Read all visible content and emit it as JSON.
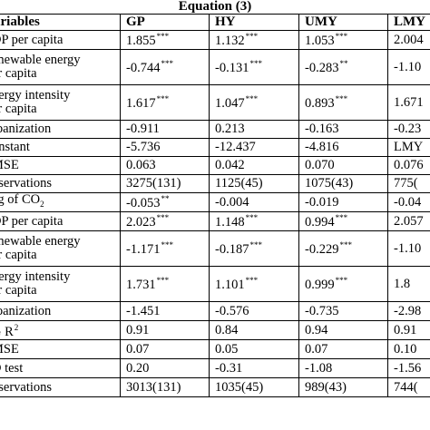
{
  "caption": "Equation (3)",
  "header": [
    "ariables",
    "GP",
    "HY",
    "UMY",
    "LMY"
  ],
  "panel_a": [
    {
      "label": [
        "DP per capita"
      ],
      "cells": [
        [
          "1.855",
          "***"
        ],
        [
          "1.132",
          "***"
        ],
        [
          "1.053",
          "***"
        ],
        [
          "2.004",
          ""
        ]
      ]
    },
    {
      "label": [
        "enewable energy",
        "er capita"
      ],
      "cells": [
        [
          "-0.744",
          "***"
        ],
        [
          "-0.131",
          "***"
        ],
        [
          "-0.283",
          "**"
        ],
        [
          "-1.10",
          ""
        ]
      ]
    },
    {
      "label": [
        "nergy intensity",
        "er capita"
      ],
      "cells": [
        [
          "1.617",
          "***"
        ],
        [
          "1.047",
          "***"
        ],
        [
          "0.893",
          "***"
        ],
        [
          "1.671",
          ""
        ]
      ]
    },
    {
      "label": [
        "rbanization"
      ],
      "cells": [
        [
          "-0.911",
          ""
        ],
        [
          "0.213",
          ""
        ],
        [
          "-0.163",
          ""
        ],
        [
          "-0.23",
          ""
        ]
      ]
    },
    {
      "label": [
        "onstant"
      ],
      "cells": [
        [
          "-5.736",
          ""
        ],
        [
          "-12.437",
          ""
        ],
        [
          "-4.816",
          ""
        ],
        [
          "LMY",
          ""
        ]
      ]
    },
    {
      "label": [
        "MSE"
      ],
      "cells": [
        [
          "0.063",
          ""
        ],
        [
          "0.042",
          ""
        ],
        [
          "0.070",
          ""
        ],
        [
          "0.076",
          ""
        ]
      ]
    },
    {
      "label": [
        "bservations"
      ],
      "cells": [
        [
          "3275(131)",
          ""
        ],
        [
          "1125(45)",
          ""
        ],
        [
          "1075(43)",
          ""
        ],
        [
          "775(",
          ""
        ]
      ]
    }
  ],
  "lag_row": {
    "label_pre": "ag of CO",
    "label_sub": "2",
    "cells": [
      [
        "-0.053",
        "**"
      ],
      [
        "-0.004",
        ""
      ],
      [
        "-0.019",
        ""
      ],
      [
        "-0.04",
        ""
      ]
    ]
  },
  "panel_b": [
    {
      "label": [
        "DP per capita"
      ],
      "cells": [
        [
          "2.023",
          "***"
        ],
        [
          "1.148",
          "***"
        ],
        [
          "0.994",
          "***"
        ],
        [
          "2.057",
          ""
        ]
      ]
    },
    {
      "label": [
        "enewable energy",
        "er capita"
      ],
      "cells": [
        [
          "-1.171",
          "***"
        ],
        [
          "-0.187",
          "***"
        ],
        [
          "-0.229",
          "***"
        ],
        [
          "-1.10",
          ""
        ]
      ]
    },
    {
      "label": [
        "nergy intensity",
        "er capita"
      ],
      "cells": [
        [
          "1.731",
          "***"
        ],
        [
          "1.101",
          "***"
        ],
        [
          "0.999",
          "***"
        ],
        [
          "1.8",
          ""
        ]
      ]
    },
    {
      "label": [
        "rbanization"
      ],
      "cells": [
        [
          "-1.451",
          ""
        ],
        [
          "-0.576",
          ""
        ],
        [
          "-0.735",
          ""
        ],
        [
          "-2.98",
          ""
        ]
      ]
    }
  ],
  "r2_row": {
    "label_pre": "G R",
    "label_sup": "2",
    "cells": [
      [
        "0.91",
        ""
      ],
      [
        "0.84",
        ""
      ],
      [
        "0.94",
        ""
      ],
      [
        "0.91",
        ""
      ]
    ]
  },
  "tail_rows": [
    {
      "label": [
        "MSE"
      ],
      "cells": [
        [
          "0.07",
          ""
        ],
        [
          "0.05",
          ""
        ],
        [
          "0.07",
          ""
        ],
        [
          "0.10",
          ""
        ]
      ]
    },
    {
      "label": [
        "D test"
      ],
      "cells": [
        [
          "0.20",
          ""
        ],
        [
          "-0.31",
          ""
        ],
        [
          "-1.08",
          ""
        ],
        [
          "-1.56",
          ""
        ]
      ]
    },
    {
      "label": [
        "bservations"
      ],
      "cells": [
        [
          "3013(131)",
          ""
        ],
        [
          "1035(45)",
          ""
        ],
        [
          "989(43)",
          ""
        ],
        [
          "744(",
          ""
        ]
      ]
    }
  ]
}
